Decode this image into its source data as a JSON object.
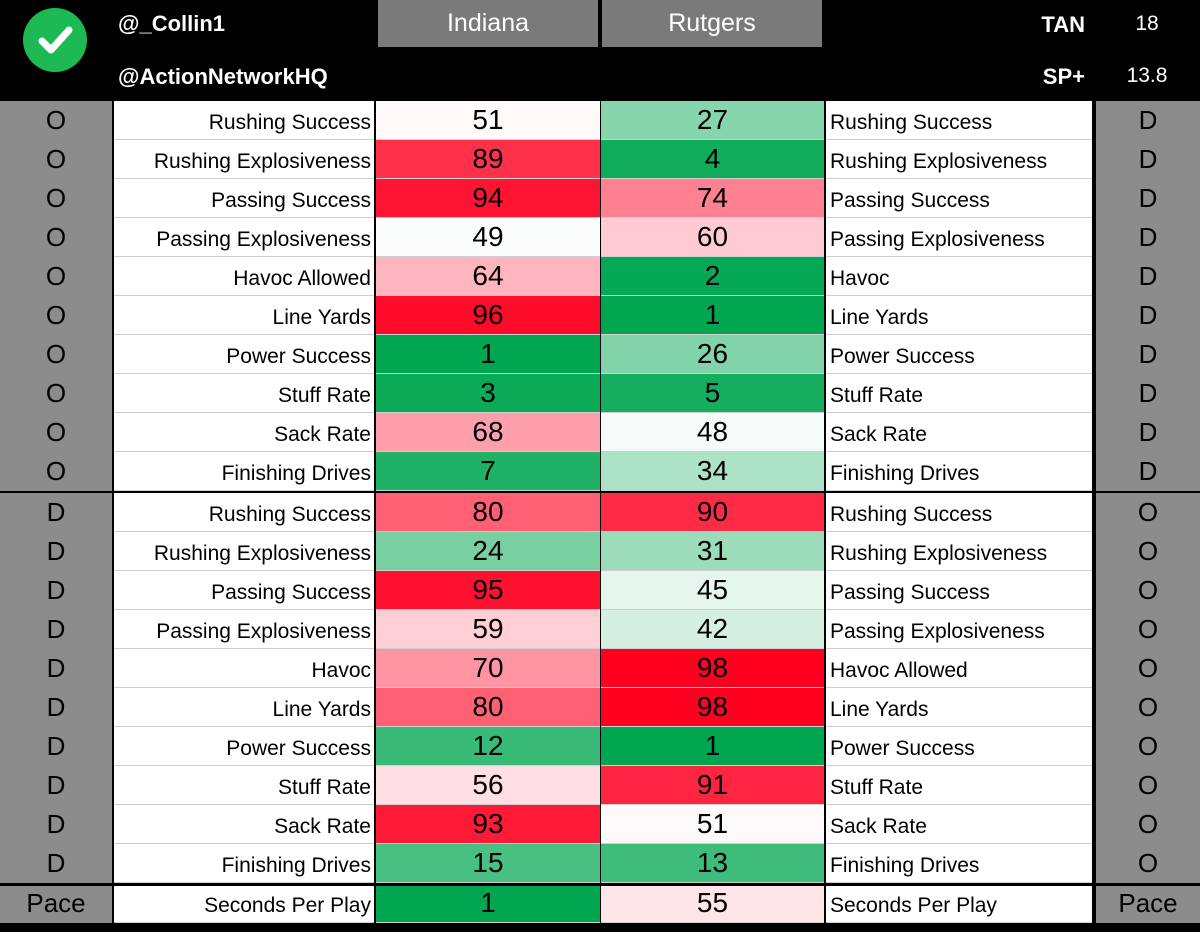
{
  "header": {
    "handle_1": "@_Collin1",
    "handle_2": "@ActionNetworkHQ",
    "team_a": "Indiana",
    "team_b": "Rutgers",
    "stat_1_label": "TAN",
    "stat_1_value": "18",
    "stat_2_label": "SP+",
    "stat_2_value": "13.8",
    "icon": "check-icon"
  },
  "rows": [
    {
      "left_side": "O",
      "left_label": "Rushing Success",
      "a": "51",
      "b": "27",
      "right_label": "Rushing Success",
      "right_side": "D"
    },
    {
      "left_side": "O",
      "left_label": "Rushing Explosiveness",
      "a": "89",
      "b": "4",
      "right_label": "Rushing Explosiveness",
      "right_side": "D"
    },
    {
      "left_side": "O",
      "left_label": "Passing Success",
      "a": "94",
      "b": "74",
      "right_label": "Passing Success",
      "right_side": "D"
    },
    {
      "left_side": "O",
      "left_label": "Passing Explosiveness",
      "a": "49",
      "b": "60",
      "right_label": "Passing Explosiveness",
      "right_side": "D"
    },
    {
      "left_side": "O",
      "left_label": "Havoc Allowed",
      "a": "64",
      "b": "2",
      "right_label": "Havoc",
      "right_side": "D"
    },
    {
      "left_side": "O",
      "left_label": "Line Yards",
      "a": "96",
      "b": "1",
      "right_label": "Line Yards",
      "right_side": "D"
    },
    {
      "left_side": "O",
      "left_label": "Power Success",
      "a": "1",
      "b": "26",
      "right_label": "Power Success",
      "right_side": "D"
    },
    {
      "left_side": "O",
      "left_label": "Stuff Rate",
      "a": "3",
      "b": "5",
      "right_label": "Stuff Rate",
      "right_side": "D"
    },
    {
      "left_side": "O",
      "left_label": "Sack Rate",
      "a": "68",
      "b": "48",
      "right_label": "Sack Rate",
      "right_side": "D"
    },
    {
      "left_side": "O",
      "left_label": "Finishing Drives",
      "a": "7",
      "b": "34",
      "right_label": "Finishing Drives",
      "right_side": "D"
    },
    {
      "left_side": "D",
      "left_label": "Rushing Success",
      "a": "80",
      "b": "90",
      "right_label": "Rushing Success",
      "right_side": "O"
    },
    {
      "left_side": "D",
      "left_label": "Rushing Explosiveness",
      "a": "24",
      "b": "31",
      "right_label": "Rushing Explosiveness",
      "right_side": "O"
    },
    {
      "left_side": "D",
      "left_label": "Passing Success",
      "a": "95",
      "b": "45",
      "right_label": "Passing Success",
      "right_side": "O"
    },
    {
      "left_side": "D",
      "left_label": "Passing Explosiveness",
      "a": "59",
      "b": "42",
      "right_label": "Passing Explosiveness",
      "right_side": "O"
    },
    {
      "left_side": "D",
      "left_label": "Havoc",
      "a": "70",
      "b": "98",
      "right_label": "Havoc Allowed",
      "right_side": "O"
    },
    {
      "left_side": "D",
      "left_label": "Line Yards",
      "a": "80",
      "b": "98",
      "right_label": "Line Yards",
      "right_side": "O"
    },
    {
      "left_side": "D",
      "left_label": "Power Success",
      "a": "12",
      "b": "1",
      "right_label": "Power Success",
      "right_side": "O"
    },
    {
      "left_side": "D",
      "left_label": "Stuff Rate",
      "a": "56",
      "b": "91",
      "right_label": "Stuff Rate",
      "right_side": "O"
    },
    {
      "left_side": "D",
      "left_label": "Sack Rate",
      "a": "93",
      "b": "51",
      "right_label": "Sack Rate",
      "right_side": "O"
    },
    {
      "left_side": "D",
      "left_label": "Finishing Drives",
      "a": "15",
      "b": "13",
      "right_label": "Finishing Drives",
      "right_side": "O"
    },
    {
      "left_side": "Pace",
      "left_label": "Seconds Per Play",
      "a": "1",
      "b": "55",
      "right_label": "Seconds Per Play",
      "right_side": "Pace"
    }
  ],
  "colors": {
    "good": "#00a650",
    "neutral": "#ffffff",
    "bad": "#ff0020",
    "side_cell": "#8c8c8c",
    "team_header": "#7a7a7a"
  }
}
